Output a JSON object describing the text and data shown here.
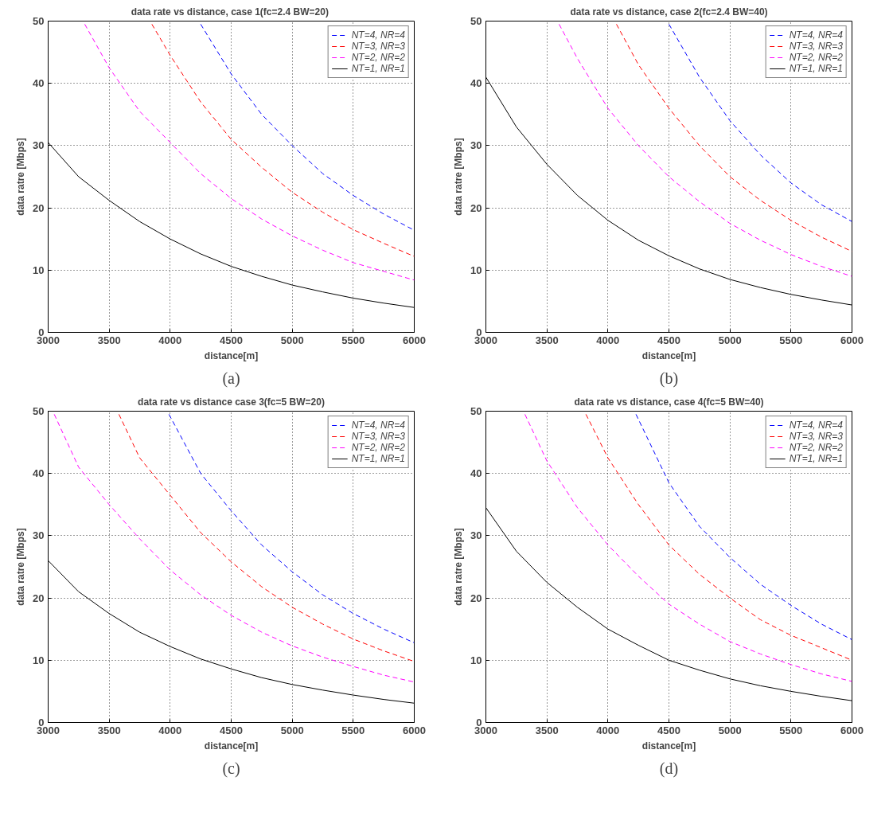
{
  "chart_data": [
    {
      "type": "line",
      "title": "data rate vs distance,  case 1(fc=2.4 BW=20)",
      "xlabel": "distance[m]",
      "ylabel": "data ratre [Mbps]",
      "annotations": [
        "(a)"
      ],
      "xlim": [
        3000,
        6000
      ],
      "ylim": [
        0,
        50
      ],
      "xticks": [
        3000,
        3500,
        4000,
        4500,
        5000,
        5500,
        6000
      ],
      "yticks": [
        0,
        10,
        20,
        30,
        40,
        50
      ],
      "grid": true,
      "legend": "top right",
      "series": [
        {
          "name": "NT=4, NR=4",
          "color": "#0000ff",
          "line_style": "dashed",
          "x": [
            4250,
            4500,
            4750,
            5000,
            5250,
            5500,
            5750,
            6000
          ],
          "values": [
            49.5,
            41.5,
            35,
            30,
            25.5,
            22,
            19,
            16.4
          ]
        },
        {
          "name": "NT=3, NR=3",
          "color": "#ff0000",
          "line_style": "dashed",
          "x": [
            3850,
            4000,
            4250,
            4500,
            4750,
            5000,
            5250,
            5500,
            5750,
            6000
          ],
          "values": [
            49.5,
            44.5,
            37,
            31,
            26.5,
            22.5,
            19.3,
            16.5,
            14.3,
            12.2
          ]
        },
        {
          "name": "NT=2, NR=2",
          "color": "#ff00ff",
          "line_style": "dashed",
          "x": [
            3300,
            3500,
            3750,
            4000,
            4250,
            4500,
            4750,
            5000,
            5250,
            5500,
            5750,
            6000
          ],
          "values": [
            49.5,
            42.5,
            35.5,
            30.5,
            25.5,
            21.5,
            18.2,
            15.5,
            13.2,
            11.2,
            9.8,
            8.4
          ]
        },
        {
          "name": "NT=1, NR=1",
          "color": "#000000",
          "line_style": "solid",
          "x": [
            3000,
            3250,
            3500,
            3750,
            4000,
            4250,
            4500,
            4750,
            5000,
            5250,
            5500,
            5750,
            6000
          ],
          "values": [
            30.5,
            25,
            21.2,
            17.8,
            15,
            12.6,
            10.6,
            9,
            7.6,
            6.5,
            5.5,
            4.7,
            4.0
          ]
        }
      ]
    },
    {
      "type": "line",
      "title": "data rate vs distance, case 2(fc=2.4 BW=40)",
      "xlabel": "distance[m]",
      "ylabel": "data ratre [Mbps]",
      "annotations": [
        "(b)"
      ],
      "xlim": [
        3000,
        6000
      ],
      "ylim": [
        0,
        50
      ],
      "xticks": [
        3000,
        3500,
        4000,
        4500,
        5000,
        5500,
        6000
      ],
      "yticks": [
        0,
        10,
        20,
        30,
        40,
        50
      ],
      "grid": true,
      "legend": "top right",
      "series": [
        {
          "name": "NT=4, NR=4",
          "color": "#0000ff",
          "line_style": "dashed",
          "x": [
            4500,
            4750,
            5000,
            5250,
            5500,
            5750,
            6000
          ],
          "values": [
            49.5,
            41,
            34,
            28.5,
            24,
            20.5,
            17.8
          ]
        },
        {
          "name": "NT=3, NR=3",
          "color": "#ff0000",
          "line_style": "dashed",
          "x": [
            4070,
            4250,
            4500,
            4750,
            5000,
            5250,
            5500,
            5750,
            6000
          ],
          "values": [
            49.5,
            43,
            36,
            30,
            25,
            21.2,
            18,
            15.3,
            13
          ]
        },
        {
          "name": "NT=2, NR=2",
          "color": "#ff00ff",
          "line_style": "dashed",
          "x": [
            3600,
            3750,
            4000,
            4250,
            4500,
            4750,
            5000,
            5250,
            5500,
            5750,
            6000
          ],
          "values": [
            49.5,
            44,
            36,
            30,
            25,
            21,
            17.5,
            14.8,
            12.5,
            10.6,
            9
          ]
        },
        {
          "name": "NT=1, NR=1",
          "color": "#000000",
          "line_style": "solid",
          "x": [
            3000,
            3250,
            3500,
            3750,
            4000,
            4250,
            4500,
            4750,
            5000,
            5250,
            5500,
            5750,
            6000
          ],
          "values": [
            41,
            33,
            27,
            22,
            18,
            14.8,
            12.3,
            10.2,
            8.5,
            7.2,
            6.1,
            5.2,
            4.4
          ]
        }
      ]
    },
    {
      "type": "line",
      "title": "data rate vs distance case 3(fc=5 BW=20)",
      "xlabel": "distance[m]",
      "ylabel": "data ratre [Mbps]",
      "annotations": [
        "(c)"
      ],
      "xlim": [
        3000,
        6000
      ],
      "ylim": [
        0,
        50
      ],
      "xticks": [
        3000,
        3500,
        4000,
        4500,
        5000,
        5500,
        6000
      ],
      "yticks": [
        0,
        10,
        20,
        30,
        40,
        50
      ],
      "grid": true,
      "legend": "top right",
      "series": [
        {
          "name": "NT=4, NR=4",
          "color": "#0000ff",
          "line_style": "dashed",
          "x": [
            3990,
            4250,
            4500,
            4750,
            5000,
            5250,
            5500,
            5750,
            6000
          ],
          "values": [
            49.5,
            40,
            34,
            28.5,
            24.2,
            20.5,
            17.5,
            15,
            12.8
          ]
        },
        {
          "name": "NT=3, NR=3",
          "color": "#ff0000",
          "line_style": "dashed",
          "x": [
            3580,
            3750,
            4000,
            4250,
            4500,
            4750,
            5000,
            5250,
            5500,
            5750,
            6000
          ],
          "values": [
            49.5,
            42.5,
            36.5,
            30.5,
            25.8,
            21.8,
            18.5,
            15.8,
            13.4,
            11.5,
            9.8
          ]
        },
        {
          "name": "NT=2, NR=2",
          "color": "#ff00ff",
          "line_style": "dashed",
          "x": [
            3050,
            3250,
            3500,
            3750,
            4000,
            4250,
            4500,
            4750,
            5000,
            5250,
            5500,
            5750,
            6000
          ],
          "values": [
            49.5,
            41,
            35,
            29.5,
            24.5,
            20.5,
            17.2,
            14.5,
            12.3,
            10.5,
            9,
            7.6,
            6.5
          ]
        },
        {
          "name": "NT=1, NR=1",
          "color": "#000000",
          "line_style": "solid",
          "x": [
            3000,
            3250,
            3500,
            3750,
            4000,
            4250,
            4500,
            4750,
            5000,
            5250,
            5500,
            5750,
            6000
          ],
          "values": [
            26,
            21,
            17.5,
            14.5,
            12.2,
            10.2,
            8.6,
            7.2,
            6.1,
            5.2,
            4.4,
            3.7,
            3.1
          ]
        }
      ]
    },
    {
      "type": "line",
      "title": "data rate vs distance, case 4(fc=5 BW=40)",
      "xlabel": "distance[m]",
      "ylabel": "data ratre [Mbps]",
      "annotations": [
        "(d)"
      ],
      "xlim": [
        3000,
        6000
      ],
      "ylim": [
        0,
        50
      ],
      "xticks": [
        3000,
        3500,
        4000,
        4500,
        5000,
        5500,
        6000
      ],
      "yticks": [
        0,
        10,
        20,
        30,
        40,
        50
      ],
      "grid": true,
      "legend": "top right",
      "series": [
        {
          "name": "NT=4, NR=4",
          "color": "#0000ff",
          "line_style": "dashed",
          "x": [
            4230,
            4500,
            4750,
            5000,
            5250,
            5500,
            5750,
            6000
          ],
          "values": [
            49.5,
            38.5,
            31.5,
            26.5,
            22.2,
            18.8,
            15.8,
            13.3
          ]
        },
        {
          "name": "NT=3, NR=3",
          "color": "#ff0000",
          "line_style": "dashed",
          "x": [
            3820,
            4000,
            4250,
            4500,
            4750,
            5000,
            5250,
            5500,
            5750,
            6000
          ],
          "values": [
            49.5,
            42.5,
            35,
            28.5,
            23.8,
            20,
            16.5,
            14,
            12,
            10
          ]
        },
        {
          "name": "NT=2, NR=2",
          "color": "#ff00ff",
          "line_style": "dashed",
          "x": [
            3320,
            3500,
            3750,
            4000,
            4250,
            4500,
            4750,
            5000,
            5250,
            5500,
            5750,
            6000
          ],
          "values": [
            49.5,
            42,
            34.5,
            28.5,
            23.5,
            19,
            15.8,
            13,
            11,
            9.3,
            7.8,
            6.6
          ]
        },
        {
          "name": "NT=1, NR=1",
          "color": "#000000",
          "line_style": "solid",
          "x": [
            3000,
            3250,
            3500,
            3750,
            4000,
            4250,
            4500,
            4750,
            5000,
            5250,
            5500,
            5750,
            6000
          ],
          "values": [
            34.5,
            27.5,
            22.5,
            18.5,
            15,
            12.4,
            10,
            8.4,
            7,
            5.9,
            5,
            4.2,
            3.5
          ]
        }
      ]
    }
  ]
}
